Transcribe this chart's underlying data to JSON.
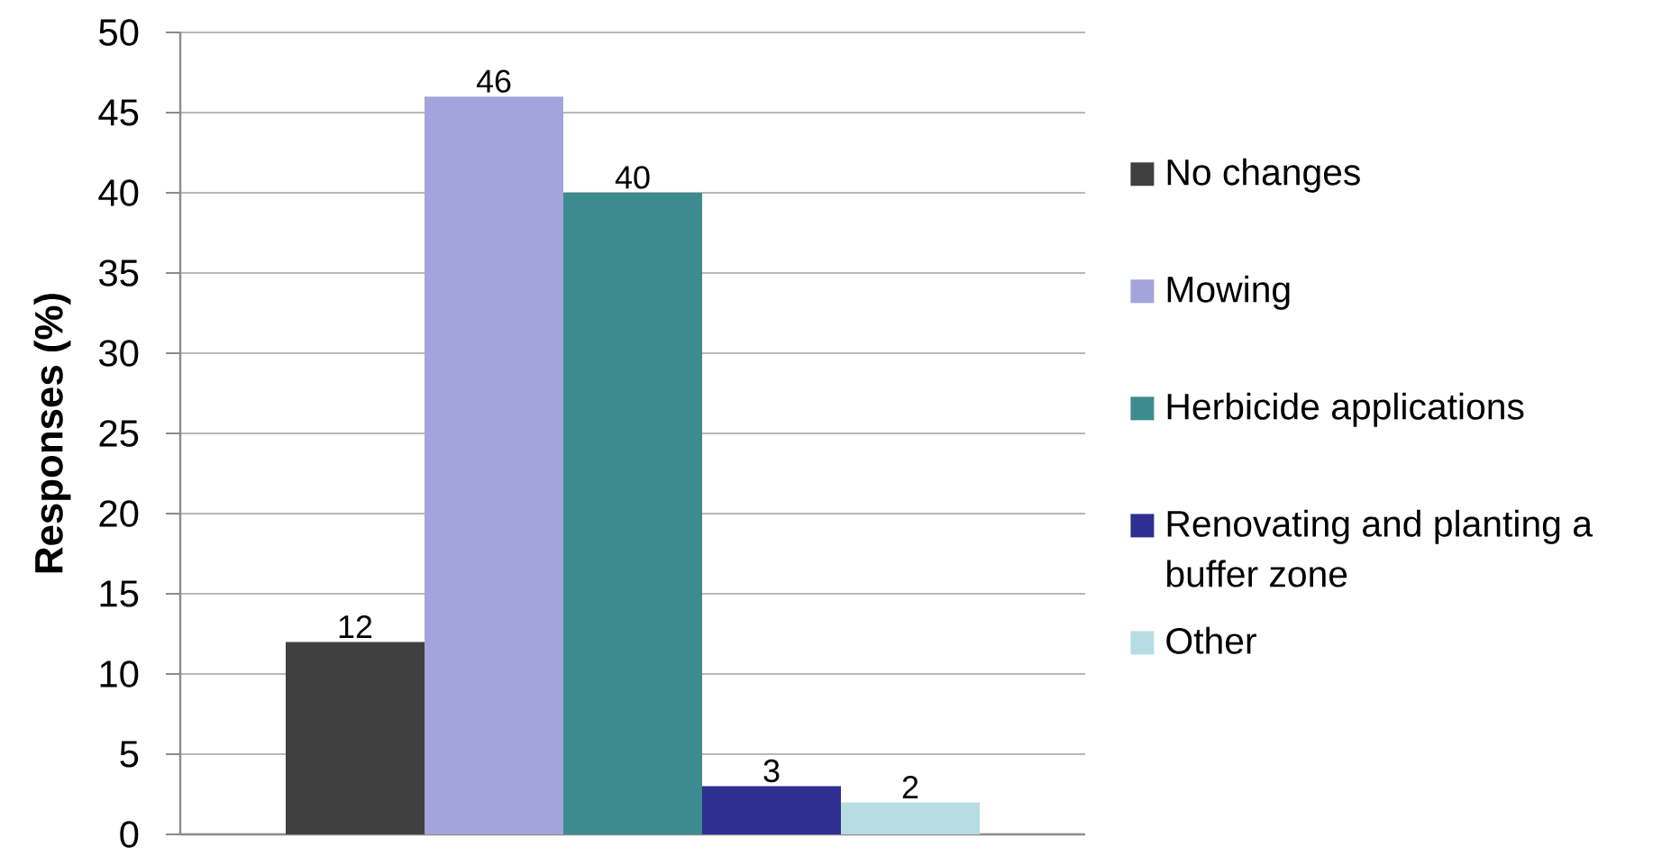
{
  "chart_data": {
    "type": "bar",
    "ylabel": "Responses (%)",
    "categories": [
      null
    ],
    "series": [
      {
        "name": "No changes",
        "color": "#404040",
        "values": [
          12
        ]
      },
      {
        "name": "Mowing",
        "color": "#a4a4dc",
        "values": [
          46
        ]
      },
      {
        "name": "Herbicide applications",
        "color": "#3d8b8f",
        "values": [
          40
        ]
      },
      {
        "name": "Renovating and planting a buffer zone",
        "color": "#2e2f90",
        "values": [
          3
        ]
      },
      {
        "name": "Other",
        "color": "#b7dde2",
        "values": [
          2
        ]
      }
    ],
    "ylim": [
      0,
      50
    ],
    "yticks": [
      0,
      5,
      10,
      15,
      20,
      25,
      30,
      35,
      40,
      45,
      50
    ],
    "grid": "y",
    "legend": "right",
    "data_labels": true
  }
}
